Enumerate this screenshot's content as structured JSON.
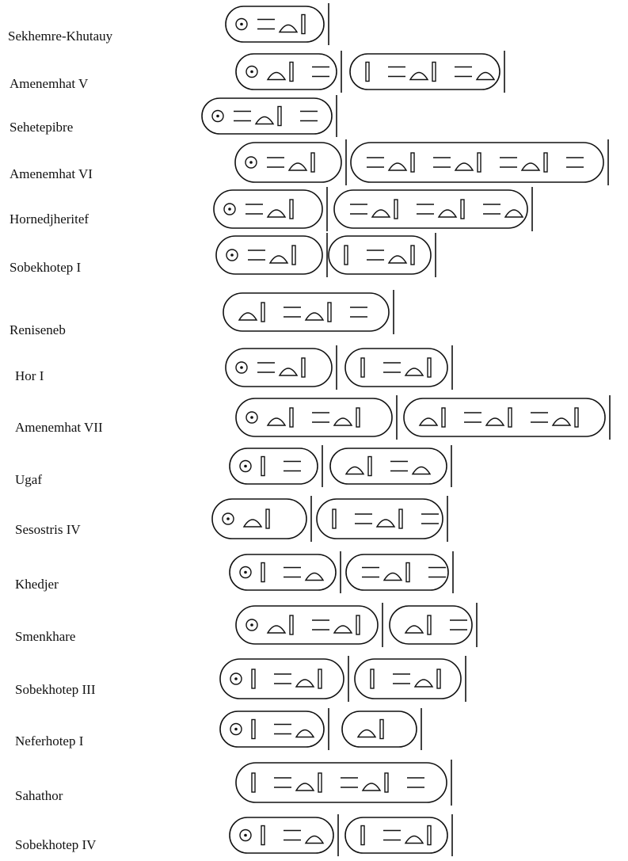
{
  "rulers": [
    {
      "name": "Sekhemre-Khutauy"
    },
    {
      "name": "Amenemhat V"
    },
    {
      "name": "Sehetepibre"
    },
    {
      "name": "Amenemhat VI"
    },
    {
      "name": "Hornedjheritef"
    },
    {
      "name": "Sobekhotep I"
    },
    {
      "name": "Reniseneb"
    },
    {
      "name": "Hor I"
    },
    {
      "name": "Amenemhat VII"
    },
    {
      "name": "Ugaf"
    },
    {
      "name": "Sesostris IV"
    },
    {
      "name": "Khedjer"
    },
    {
      "name": "Smenkhare"
    },
    {
      "name": "Sobekhotep III"
    },
    {
      "name": "Neferhotep I"
    },
    {
      "name": "Sahathor"
    },
    {
      "name": "Sobekhotep IV"
    }
  ]
}
